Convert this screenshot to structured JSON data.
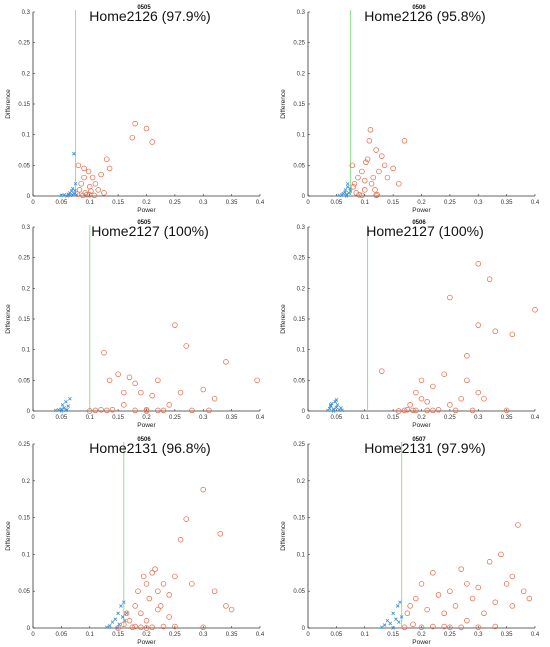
{
  "chart_data": [
    {
      "type": "scatter",
      "code": "0505",
      "title": "Home2126 (97.9%)",
      "xlabel": "Power",
      "ylabel": "Difference",
      "xlim": [
        0,
        0.4
      ],
      "ylim": [
        0,
        0.3
      ],
      "xticks": [
        "0",
        "0.05",
        "0.1",
        "0.15",
        "0.2",
        "0.25",
        "0.3",
        "0.35",
        "0.4"
      ],
      "yticks": [
        "0",
        "0.05",
        "0.1",
        "0.15",
        "0.2",
        "0.25",
        "0.3"
      ],
      "threshold_x": 0.075,
      "series": [
        {
          "color": "#e8623f",
          "marker": "circle",
          "x": [
            0.078,
            0.08,
            0.082,
            0.085,
            0.088,
            0.09,
            0.092,
            0.095,
            0.098,
            0.1,
            0.102,
            0.105,
            0.108,
            0.11,
            0.12,
            0.13,
            0.135,
            0.175,
            0.18,
            0.2,
            0.21,
            0.09,
            0.1,
            0.115,
            0.125
          ],
          "y": [
            0.003,
            0.05,
            0.01,
            0.02,
            0.001,
            0.03,
            0.005,
            0.002,
            0.04,
            0.015,
            0.008,
            0.03,
            0.001,
            0.02,
            0.035,
            0.06,
            0.045,
            0.095,
            0.118,
            0.11,
            0.088,
            0.045,
            0.002,
            0.01,
            0.005
          ]
        },
        {
          "color": "#3a8fd6",
          "marker": "x",
          "x": [
            0.05,
            0.055,
            0.06,
            0.062,
            0.065,
            0.066,
            0.068,
            0.07,
            0.07,
            0.072,
            0.074,
            0.075,
            0.077,
            0.072
          ],
          "y": [
            0.001,
            0.002,
            0.0,
            0.003,
            0.005,
            0.001,
            0.008,
            0.002,
            0.012,
            0.004,
            0.009,
            0.02,
            0.002,
            0.069
          ]
        }
      ]
    },
    {
      "type": "scatter",
      "code": "0506",
      "title": "Home2126 (95.8%)",
      "xlabel": "Power",
      "ylabel": "Difference",
      "xlim": [
        0,
        0.4
      ],
      "ylim": [
        0,
        0.3
      ],
      "xticks": [
        "0",
        "0.05",
        "0.1",
        "0.15",
        "0.2",
        "0.25",
        "0.3",
        "0.35",
        "0.4"
      ],
      "yticks": [
        "0",
        "0.05",
        "0.1",
        "0.15",
        "0.2",
        "0.25",
        "0.3"
      ],
      "threshold_x": 0.075,
      "series": [
        {
          "color": "#e8623f",
          "marker": "circle",
          "x": [
            0.078,
            0.08,
            0.082,
            0.085,
            0.088,
            0.09,
            0.095,
            0.1,
            0.102,
            0.105,
            0.108,
            0.11,
            0.112,
            0.115,
            0.12,
            0.122,
            0.125,
            0.13,
            0.135,
            0.14,
            0.15,
            0.16,
            0.17,
            0.12,
            0.118,
            0.1,
            0.095
          ],
          "y": [
            0.05,
            0.015,
            0.02,
            0.005,
            0.03,
            0.002,
            0.04,
            0.01,
            0.055,
            0.06,
            0.09,
            0.108,
            0.02,
            0.03,
            0.075,
            0.002,
            0.04,
            0.065,
            0.05,
            0.03,
            0.045,
            0.02,
            0.09,
            0.001,
            0.01,
            0.025,
            0.001
          ]
        },
        {
          "color": "#3a8fd6",
          "marker": "x",
          "x": [
            0.055,
            0.06,
            0.062,
            0.065,
            0.066,
            0.068,
            0.07,
            0.07,
            0.072,
            0.074,
            0.075,
            0.068
          ],
          "y": [
            0.001,
            0.002,
            0.004,
            0.006,
            0.01,
            0.002,
            0.015,
            0.02,
            0.005,
            0.012,
            0.008,
            0.0
          ]
        }
      ]
    },
    {
      "type": "scatter",
      "code": "0505",
      "title": "Home2127 (100%)",
      "xlabel": "Power",
      "ylabel": "Difference",
      "xlim": [
        0,
        0.4
      ],
      "ylim": [
        0,
        0.3
      ],
      "xticks": [
        "0",
        "0.05",
        "0.1",
        "0.15",
        "0.2",
        "0.25",
        "0.3",
        "0.35",
        "0.4"
      ],
      "yticks": [
        "0",
        "0.05",
        "0.1",
        "0.15",
        "0.2",
        "0.25",
        "0.3"
      ],
      "threshold_x": 0.1,
      "series": [
        {
          "color": "#e8623f",
          "marker": "circle",
          "x": [
            0.1,
            0.11,
            0.12,
            0.125,
            0.13,
            0.135,
            0.14,
            0.15,
            0.16,
            0.17,
            0.18,
            0.19,
            0.2,
            0.21,
            0.22,
            0.23,
            0.25,
            0.26,
            0.27,
            0.28,
            0.3,
            0.31,
            0.32,
            0.34,
            0.395,
            0.18,
            0.2,
            0.16,
            0.24,
            0.22
          ],
          "y": [
            0.0,
            0.001,
            0.002,
            0.095,
            0.001,
            0.05,
            0.002,
            0.06,
            0.01,
            0.055,
            0.001,
            0.03,
            0.002,
            0.025,
            0.05,
            0.001,
            0.14,
            0.03,
            0.106,
            0.001,
            0.035,
            0.001,
            0.02,
            0.08,
            0.05,
            0.045,
            0.0,
            0.03,
            0.01,
            0.001
          ]
        },
        {
          "color": "#3a8fd6",
          "marker": "x",
          "x": [
            0.04,
            0.045,
            0.05,
            0.052,
            0.055,
            0.058,
            0.06,
            0.062,
            0.065,
            0.05,
            0.058
          ],
          "y": [
            0.001,
            0.002,
            0.003,
            0.01,
            0.005,
            0.015,
            0.002,
            0.008,
            0.02,
            0.0,
            0.001
          ]
        }
      ]
    },
    {
      "type": "scatter",
      "code": "0506",
      "title": "Home2127 (100%)",
      "xlabel": "Power",
      "ylabel": "Difference",
      "xlim": [
        0,
        0.4
      ],
      "ylim": [
        0,
        0.3
      ],
      "xticks": [
        "0",
        "0.05",
        "0.1",
        "0.15",
        "0.2",
        "0.25",
        "0.3",
        "0.35",
        "0.4"
      ],
      "yticks": [
        "0",
        "0.05",
        "0.1",
        "0.15",
        "0.2",
        "0.25",
        "0.3"
      ],
      "threshold_x": 0.105,
      "series": [
        {
          "color": "#e8623f",
          "marker": "circle",
          "x": [
            0.13,
            0.16,
            0.17,
            0.175,
            0.18,
            0.185,
            0.19,
            0.2,
            0.21,
            0.22,
            0.23,
            0.24,
            0.25,
            0.26,
            0.27,
            0.28,
            0.29,
            0.3,
            0.3,
            0.31,
            0.32,
            0.33,
            0.35,
            0.36,
            0.4,
            0.2,
            0.22,
            0.25,
            0.28,
            0.3,
            0.19,
            0.21
          ],
          "y": [
            0.065,
            0.0,
            0.001,
            0.002,
            0.01,
            0.001,
            0.03,
            0.05,
            0.001,
            0.04,
            0.002,
            0.06,
            0.185,
            0.001,
            0.02,
            0.09,
            0.001,
            0.24,
            0.14,
            0.02,
            0.215,
            0.13,
            0.001,
            0.125,
            0.165,
            0.02,
            0.001,
            0.01,
            0.05,
            0.03,
            0.001,
            0.015
          ]
        },
        {
          "color": "#3a8fd6",
          "marker": "x",
          "x": [
            0.035,
            0.038,
            0.04,
            0.042,
            0.045,
            0.048,
            0.05,
            0.052,
            0.055,
            0.058,
            0.06,
            0.045,
            0.05,
            0.04
          ],
          "y": [
            0.001,
            0.004,
            0.008,
            0.012,
            0.003,
            0.015,
            0.006,
            0.01,
            0.002,
            0.005,
            0.001,
            0.0,
            0.018,
            0.01
          ]
        }
      ]
    },
    {
      "type": "scatter",
      "code": "0506",
      "title": "Home2131 (96.8%)",
      "xlabel": "Power",
      "ylabel": "Difference",
      "xlim": [
        0,
        0.4
      ],
      "ylim": [
        0,
        0.25
      ],
      "xticks": [
        "0",
        "0.05",
        "0.1",
        "0.15",
        "0.2",
        "0.25",
        "0.3",
        "0.35",
        "0.4"
      ],
      "yticks": [
        "0",
        "0.05",
        "0.1",
        "0.15",
        "0.2",
        "0.25"
      ],
      "threshold_x": 0.16,
      "series": [
        {
          "color": "#e8623f",
          "marker": "circle",
          "x": [
            0.15,
            0.16,
            0.165,
            0.17,
            0.175,
            0.18,
            0.185,
            0.19,
            0.195,
            0.2,
            0.205,
            0.21,
            0.215,
            0.22,
            0.225,
            0.23,
            0.24,
            0.25,
            0.26,
            0.27,
            0.28,
            0.3,
            0.32,
            0.33,
            0.34,
            0.35,
            0.19,
            0.2,
            0.21,
            0.22,
            0.23,
            0.24,
            0.18,
            0.2,
            0.25,
            0.3
          ],
          "y": [
            0.0,
            0.005,
            0.02,
            0.01,
            0.001,
            0.03,
            0.05,
            0.02,
            0.07,
            0.06,
            0.04,
            0.075,
            0.08,
            0.05,
            0.03,
            0.06,
            0.045,
            0.07,
            0.12,
            0.148,
            0.06,
            0.188,
            0.05,
            0.128,
            0.03,
            0.025,
            0.001,
            0.01,
            0.001,
            0.025,
            0.002,
            0.015,
            0.002,
            0.0,
            0.002,
            0.001
          ]
        },
        {
          "color": "#3a8fd6",
          "marker": "x",
          "x": [
            0.13,
            0.135,
            0.14,
            0.145,
            0.15,
            0.152,
            0.155,
            0.158,
            0.16,
            0.162,
            0.165,
            0.148
          ],
          "y": [
            0.001,
            0.003,
            0.008,
            0.012,
            0.02,
            0.005,
            0.03,
            0.015,
            0.035,
            0.01,
            0.02,
            0.0
          ]
        }
      ]
    },
    {
      "type": "scatter",
      "code": "0507",
      "title": "Home2131 (97.9%)",
      "xlabel": "Power",
      "ylabel": "Difference",
      "xlim": [
        0,
        0.4
      ],
      "ylim": [
        0,
        0.25
      ],
      "xticks": [
        "0",
        "0.05",
        "0.1",
        "0.15",
        "0.2",
        "0.25",
        "0.3",
        "0.35",
        "0.4"
      ],
      "yticks": [
        "0",
        "0.05",
        "0.1",
        "0.15",
        "0.2",
        "0.25"
      ],
      "threshold_x": 0.165,
      "series": [
        {
          "color": "#e8623f",
          "marker": "circle",
          "x": [
            0.17,
            0.175,
            0.18,
            0.185,
            0.19,
            0.2,
            0.21,
            0.22,
            0.23,
            0.24,
            0.25,
            0.26,
            0.27,
            0.28,
            0.29,
            0.3,
            0.31,
            0.32,
            0.33,
            0.34,
            0.35,
            0.36,
            0.37,
            0.38,
            0.39,
            0.22,
            0.25,
            0.28,
            0.3,
            0.33,
            0.36,
            0.2,
            0.24,
            0.27
          ],
          "y": [
            0.001,
            0.02,
            0.03,
            0.005,
            0.04,
            0.06,
            0.025,
            0.075,
            0.045,
            0.02,
            0.05,
            0.03,
            0.08,
            0.06,
            0.04,
            0.055,
            0.02,
            0.09,
            0.035,
            0.1,
            0.06,
            0.07,
            0.14,
            0.05,
            0.04,
            0.002,
            0.001,
            0.01,
            0.001,
            0.002,
            0.03,
            0.001,
            0.002,
            0.001
          ]
        },
        {
          "color": "#3a8fd6",
          "marker": "x",
          "x": [
            0.13,
            0.135,
            0.14,
            0.145,
            0.15,
            0.155,
            0.158,
            0.16,
            0.162,
            0.165,
            0.15
          ],
          "y": [
            0.001,
            0.004,
            0.01,
            0.006,
            0.02,
            0.012,
            0.03,
            0.008,
            0.035,
            0.015,
            0.0
          ]
        }
      ]
    }
  ]
}
